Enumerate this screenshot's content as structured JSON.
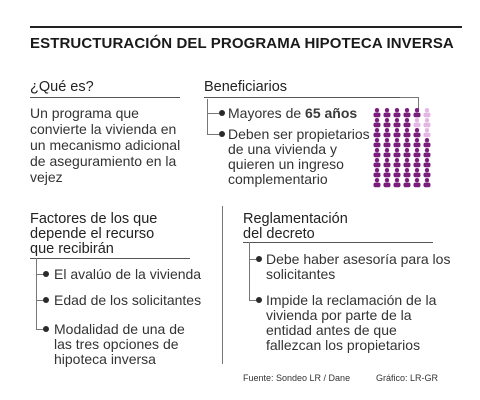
{
  "title": "ESTRUCTURACIÓN DEL PROGRAMA HIPOTECA INVERSA",
  "que_es": {
    "heading": "¿Qué es?",
    "lines": [
      "Un programa que",
      "convierte la vivienda en",
      "un mecanismo adicional",
      "de aseguramiento en la",
      "vejez"
    ]
  },
  "beneficiarios": {
    "heading": "Beneficiarios",
    "item1_prefix": "Mayores de ",
    "item1_bold": "65 años",
    "item2_lines": [
      "Deben ser propietarios",
      "de una vivienda y",
      "quieren un ingreso",
      "complementario"
    ]
  },
  "factores": {
    "heading_lines": [
      "Factores de los que",
      "depende el recurso",
      "que recibirán"
    ],
    "items": [
      [
        "El avalúo de la vivienda"
      ],
      [
        "Edad de los solicitantes"
      ],
      [
        "Modalidad de una de",
        "las tres opciones de",
        "hipoteca inversa"
      ]
    ]
  },
  "reglamentacion": {
    "heading_lines": [
      "Reglamentación",
      "del decreto"
    ],
    "items": [
      [
        "Debe haber asesoría para los",
        "solicitantes"
      ],
      [
        "Impide la reclamación de la",
        "vivienda por parte de la",
        "entidad antes de que",
        "fallezcan los propietarios"
      ]
    ]
  },
  "footer": {
    "source": "Fuente: Sondeo LR / Dane",
    "graphic": "Gráfico: LR-GR"
  },
  "colors": {
    "dark_purple": "#7b1d7c",
    "light_purple": "#e4b6e4"
  },
  "people_icon": "person-icon",
  "grid": {
    "rows": 8,
    "cols": 6,
    "light_cells": [
      [
        0,
        5
      ],
      [
        1,
        4
      ],
      [
        1,
        5
      ],
      [
        2,
        5
      ]
    ]
  }
}
